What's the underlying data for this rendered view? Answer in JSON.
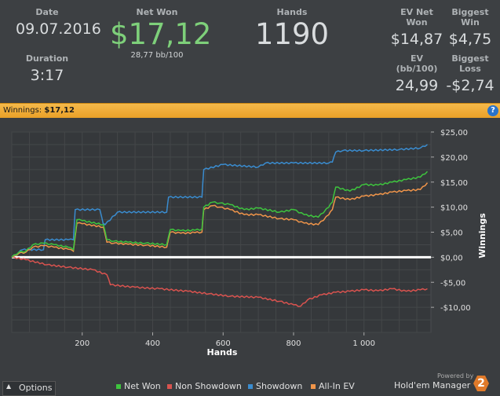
{
  "header": {
    "date_label": "Date",
    "date_value": "09.07.2016",
    "duration_label": "Duration",
    "duration_value": "3:17",
    "net_won_label": "Net Won",
    "net_won_value": "$17,12",
    "bb_per_100": "28,77 bb/100",
    "hands_label": "Hands",
    "hands_value": "1190",
    "ev_net_won_label": "EV Net Won",
    "ev_net_won_value": "$14,87",
    "biggest_win_label": "Biggest Win",
    "biggest_win_value": "$4,75",
    "ev_bb_label": "EV (bb/100)",
    "ev_bb_value": "24,99",
    "biggest_loss_label": "Biggest Loss",
    "biggest_loss_value": "-$2,74"
  },
  "bar": {
    "label": "Winnings:",
    "value": "$17,12",
    "help_glyph": "?"
  },
  "chart_data": {
    "type": "line",
    "xlabel": "Hands",
    "ylabel": "Winnings",
    "xlim": [
      0,
      1190
    ],
    "ylim": [
      -15,
      25
    ],
    "x_ticks": [
      200,
      400,
      600,
      800,
      1000
    ],
    "x_tick_labels": [
      "200",
      "400",
      "600",
      "800",
      "1 000"
    ],
    "y_ticks": [
      25,
      20,
      15,
      10,
      5,
      0,
      -5,
      -10
    ],
    "y_tick_labels": [
      "$25,00",
      "$20,00",
      "$15,00",
      "$10,00",
      "$5,00",
      "$0,00",
      "-$5,00",
      "-$10,00"
    ],
    "grid": true,
    "legend_position": "bottom",
    "series": [
      {
        "name": "Net Won",
        "color": "#3ec43e",
        "x": [
          0,
          20,
          40,
          60,
          90,
          120,
          160,
          175,
          185,
          200,
          260,
          270,
          290,
          330,
          380,
          440,
          450,
          480,
          520,
          540,
          545,
          570,
          590,
          620,
          660,
          700,
          760,
          800,
          830,
          870,
          900,
          910,
          920,
          960,
          1000,
          1040,
          1080,
          1120,
          1160,
          1180
        ],
        "y": [
          0,
          1,
          1.2,
          2.5,
          2.8,
          2.5,
          2,
          1.5,
          7.5,
          7.3,
          6.5,
          3.5,
          3.2,
          3,
          2.8,
          2.5,
          5.5,
          5.3,
          5.4,
          5.6,
          10,
          11,
          10.8,
          10.5,
          9.5,
          9.8,
          9,
          9.5,
          8.5,
          8,
          10,
          11,
          14,
          13.2,
          14.5,
          14.4,
          15,
          15.5,
          16,
          17.12
        ]
      },
      {
        "name": "Non Showdown",
        "color": "#d9534f",
        "x": [
          0,
          40,
          100,
          160,
          230,
          270,
          280,
          350,
          420,
          500,
          560,
          620,
          700,
          760,
          800,
          820,
          840,
          880,
          920,
          960,
          1000,
          1040,
          1080,
          1120,
          1160,
          1180
        ],
        "y": [
          0,
          -0.5,
          -1.5,
          -2,
          -2.5,
          -3.5,
          -5.5,
          -6,
          -6.3,
          -6.8,
          -7.3,
          -7.8,
          -8,
          -8.8,
          -9.5,
          -9.8,
          -8.5,
          -7.5,
          -7,
          -6.8,
          -6.5,
          -6.7,
          -6.3,
          -6.8,
          -6.5,
          -6.3
        ]
      },
      {
        "name": "Showdown",
        "color": "#3a8ccf",
        "x": [
          0,
          20,
          30,
          90,
          95,
          160,
          175,
          180,
          250,
          260,
          265,
          300,
          440,
          445,
          540,
          545,
          600,
          700,
          720,
          800,
          900,
          910,
          920,
          940,
          1000,
          1100,
          1160,
          1180
        ],
        "y": [
          0,
          1,
          1.5,
          1.5,
          3.5,
          3.5,
          3.5,
          9.5,
          9.5,
          6.5,
          6.5,
          9,
          9,
          12,
          12,
          17.5,
          18.5,
          18,
          18.8,
          18.8,
          18.8,
          19,
          21,
          21.3,
          21.3,
          21.5,
          21.8,
          22.5
        ]
      },
      {
        "name": "All-In EV",
        "color": "#f0954a",
        "x": [
          0,
          20,
          40,
          60,
          90,
          120,
          160,
          175,
          185,
          200,
          260,
          270,
          290,
          330,
          380,
          440,
          450,
          480,
          520,
          540,
          545,
          570,
          590,
          620,
          660,
          700,
          760,
          800,
          830,
          870,
          900,
          910,
          920,
          960,
          1000,
          1040,
          1080,
          1120,
          1160,
          1180
        ],
        "y": [
          0,
          0.8,
          1,
          2,
          2.3,
          2,
          1.6,
          1.2,
          6.8,
          6.7,
          6,
          3,
          2.8,
          2.6,
          2.4,
          2,
          5,
          4.8,
          4.9,
          5,
          9.5,
          10.3,
          10,
          9.5,
          8.5,
          8.5,
          7.7,
          7.5,
          6.8,
          6.5,
          8.5,
          9.5,
          12,
          11.5,
          12.2,
          12.5,
          13,
          13.3,
          13.5,
          14.87
        ]
      }
    ]
  },
  "legend": {
    "net_won": "Net Won",
    "non_showdown": "Non Showdown",
    "showdown": "Showdown",
    "all_in_ev": "All-In EV"
  },
  "footer": {
    "options_label": "Options",
    "options_glyph": "▲",
    "powered_by": "Powered by",
    "product": "Hold'em Manager",
    "product_badge": "2"
  }
}
